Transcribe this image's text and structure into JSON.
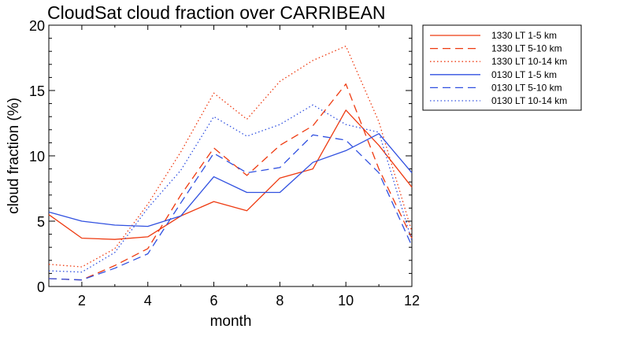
{
  "chart_data": {
    "type": "line",
    "title": "CloudSat cloud fraction over CARRIBEAN",
    "xlabel": "month",
    "ylabel": "cloud fraction (%)",
    "xlim": [
      1,
      12
    ],
    "ylim": [
      0,
      20
    ],
    "xticks": [
      2,
      4,
      6,
      8,
      10,
      12
    ],
    "yticks": [
      0,
      5,
      10,
      15,
      20
    ],
    "grid": false,
    "legend_position": "top-right, outside plot",
    "x": [
      1,
      2,
      3,
      4,
      5,
      6,
      7,
      8,
      9,
      10,
      11,
      12
    ],
    "series": [
      {
        "name": "1330 LT 1-5 km",
        "color": "#ee3a10",
        "dash": "solid",
        "values": [
          5.5,
          3.7,
          3.6,
          3.8,
          5.4,
          6.5,
          5.8,
          8.3,
          9.0,
          13.5,
          10.8,
          7.6
        ]
      },
      {
        "name": "1330 LT 5-10 km",
        "color": "#ee3a10",
        "dash": "dashed",
        "values": [
          0.6,
          0.5,
          1.6,
          2.9,
          7.0,
          10.6,
          8.5,
          10.8,
          12.3,
          15.5,
          9.0,
          3.7
        ]
      },
      {
        "name": "1330 LT 10-14 km",
        "color": "#ee3a10",
        "dash": "dotted",
        "values": [
          1.7,
          1.5,
          2.9,
          6.3,
          10.3,
          14.8,
          12.8,
          15.7,
          17.3,
          18.4,
          12.6,
          4.2
        ]
      },
      {
        "name": "0130 LT 1-5 km",
        "color": "#3050e0",
        "dash": "solid",
        "values": [
          5.7,
          5.0,
          4.7,
          4.6,
          5.4,
          8.4,
          7.2,
          7.2,
          9.5,
          10.4,
          11.7,
          8.7
        ]
      },
      {
        "name": "0130 LT 5-10 km",
        "color": "#3050e0",
        "dash": "dashed",
        "values": [
          0.6,
          0.5,
          1.4,
          2.5,
          6.4,
          10.2,
          8.7,
          9.1,
          11.6,
          11.2,
          8.7,
          3.1
        ]
      },
      {
        "name": "0130 LT 10-14 km",
        "color": "#3050e0",
        "dash": "dotted",
        "values": [
          1.2,
          1.1,
          2.6,
          6.0,
          8.9,
          13.0,
          11.5,
          12.4,
          13.9,
          12.4,
          11.8,
          3.5
        ]
      }
    ]
  }
}
